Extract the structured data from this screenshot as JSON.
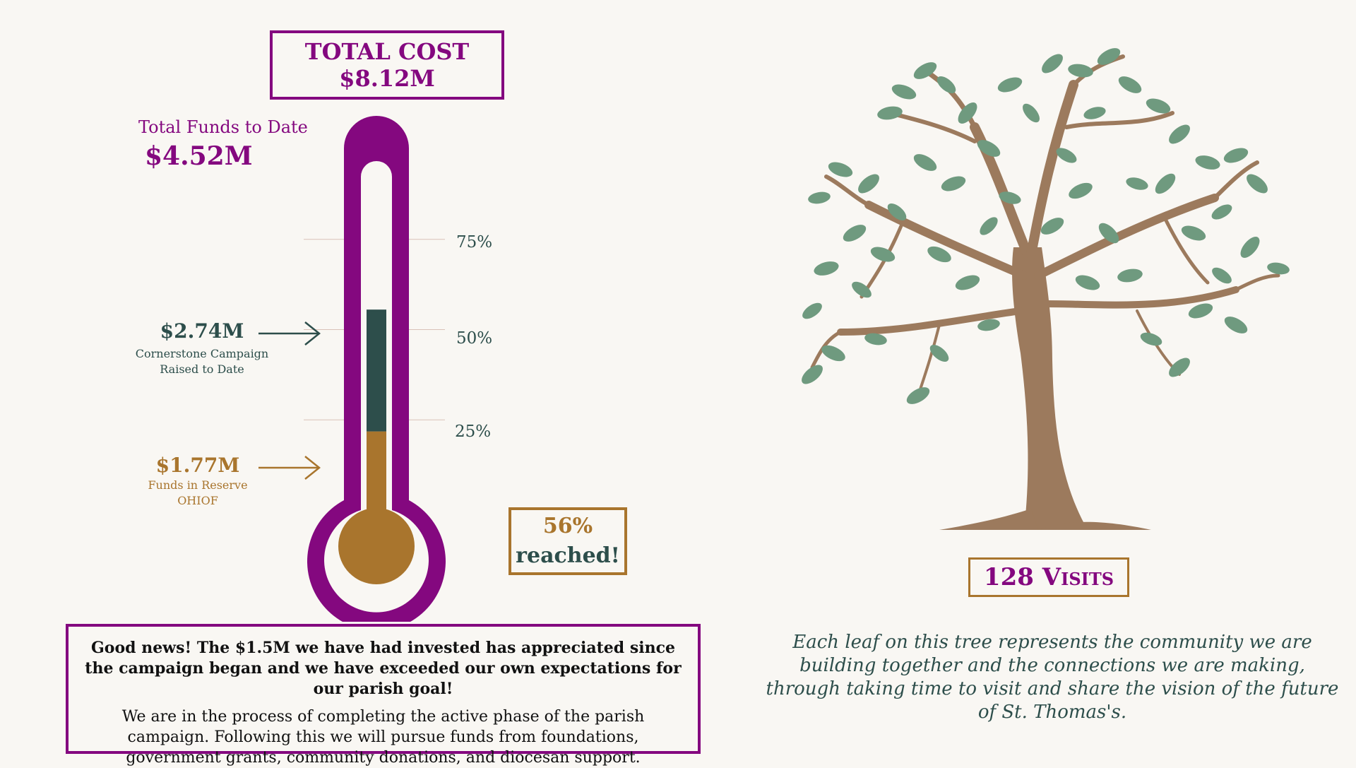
{
  "total_cost": {
    "label": "TOTAL COST",
    "value": "$8.12M"
  },
  "funds_to_date": {
    "label": "Total Funds to Date",
    "value": "$4.52M"
  },
  "chart_data": {
    "type": "bar",
    "goal": 8.12,
    "units": "$M",
    "ticks": [
      {
        "label": "75%",
        "value": 0.75
      },
      {
        "label": "50%",
        "value": 0.5
      },
      {
        "label": "25%",
        "value": 0.25
      }
    ],
    "series": [
      {
        "value": 1.77,
        "color": "#a9752d"
      },
      {
        "value": 2.74,
        "color": "#2d4e4b"
      }
    ],
    "callouts": [
      {
        "value": "$2.74M",
        "line1": "Cornerstone Campaign",
        "line2": "Raised to Date",
        "color": "#2d4e4b"
      },
      {
        "value": "$1.77M",
        "line1": "Funds in Reserve",
        "line2": "OHIOF",
        "color": "#a9752d"
      }
    ],
    "percent_reached": {
      "value": "56%",
      "label": "reached!"
    }
  },
  "news": {
    "headline": "Good news! The $1.5M we have had invested has appreciated since the campaign began and we have exceeded our own expectations for our parish goal!",
    "body": "We are in the process of completing the active phase of the parish campaign. Following this we will pursue funds from foundations, government grants, community donations, and diocesan support."
  },
  "visits": "128 Visits",
  "tree_caption": "Each leaf on this tree represents the community we are building together and the connections we are making, through taking time to visit and share the vision of the future of St. Thomas's.",
  "colors": {
    "purple": "#84087f",
    "teal": "#2d4e4b",
    "gold": "#a9752d",
    "leaf": "#6f9a7f",
    "trunk": "#9c7a5d",
    "background": "#f9f7f3"
  },
  "icons": {
    "arrow": "right-arrow-icon",
    "tree": "tree-illustration"
  }
}
